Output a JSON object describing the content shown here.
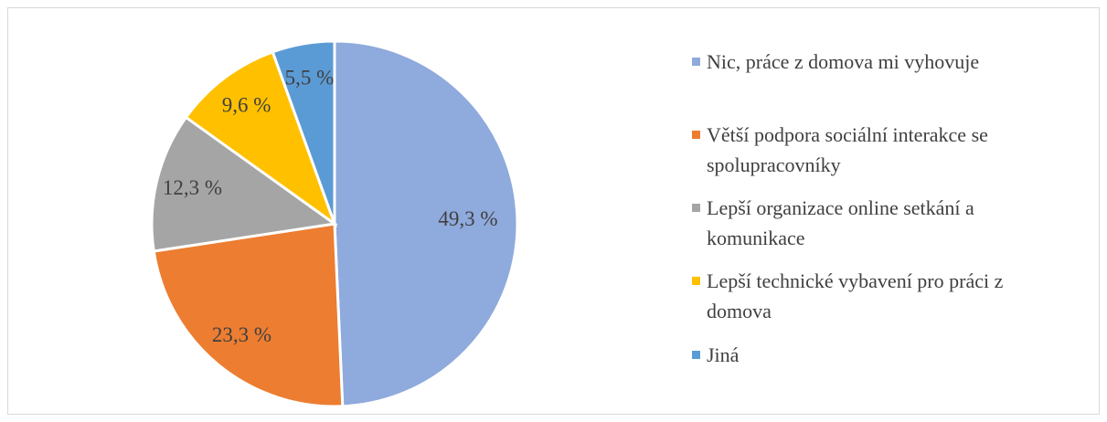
{
  "chart_data": {
    "type": "pie",
    "categories": [
      "Nic, práce z domova mi vyhovuje",
      "Větší podpora sociální interakce se spolupracovníky",
      "Lepší organizace online setkání a komunikace",
      "Lepší technické vybavení pro práci z domova",
      "Jiná"
    ],
    "values": [
      49.3,
      23.3,
      12.3,
      9.6,
      5.5
    ],
    "value_labels": [
      "49,3 %",
      "23,3 %",
      "12,3 %",
      "9,6 %",
      "5,5 %"
    ],
    "colors": [
      "#8faadc",
      "#ed7d31",
      "#a5a5a5",
      "#ffc000",
      "#5b9bd5"
    ],
    "legend": "right"
  }
}
